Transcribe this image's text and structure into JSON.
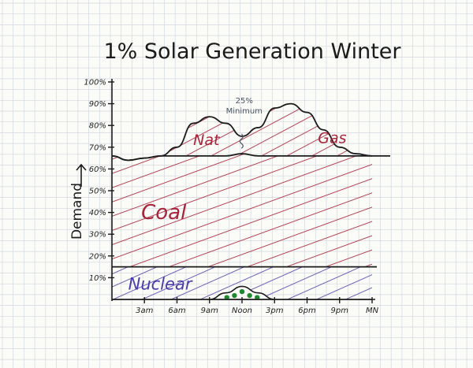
{
  "chart_data": {
    "type": "area",
    "title": "1% Solar Generation Winter",
    "ylabel": "Demand",
    "y_ticks": [
      "10%",
      "20%",
      "30%",
      "40%",
      "50%",
      "60%",
      "70%",
      "80%",
      "90%",
      "100%"
    ],
    "y_tick_values": [
      10,
      20,
      30,
      40,
      50,
      60,
      70,
      80,
      90,
      100
    ],
    "x_ticks": [
      "3am",
      "6am",
      "9am",
      "Noon",
      "3pm",
      "6pm",
      "9pm",
      "MN"
    ],
    "x_tick_values": [
      3,
      6,
      9,
      12,
      15,
      18,
      21,
      24
    ],
    "xlim": [
      0,
      24
    ],
    "ylim": [
      0,
      100
    ],
    "x": [
      0,
      1.5,
      3,
      4.5,
      6,
      7.5,
      9,
      10.5,
      12,
      13.5,
      15,
      16.5,
      18,
      19.5,
      21,
      22.5,
      24
    ],
    "series": [
      {
        "name": "Nuclear",
        "color": "#4a3ca8",
        "values": [
          15,
          15,
          15,
          15,
          15,
          15,
          15,
          15,
          15,
          15,
          15,
          15,
          15,
          15,
          15,
          15,
          15
        ]
      },
      {
        "name": "Coal",
        "color": "#a8243a",
        "values": [
          66,
          64,
          65,
          66,
          66,
          66,
          66,
          66,
          67,
          66,
          66,
          66,
          66,
          66,
          66,
          66,
          66
        ]
      },
      {
        "name": "Nat Gas",
        "color": "#a8243a",
        "values": [
          66,
          64,
          65,
          66,
          70,
          81,
          84,
          81,
          75,
          79,
          88,
          90,
          86,
          78,
          70,
          67,
          66
        ]
      },
      {
        "name": "Solar",
        "color": "#1e8a2e",
        "values": [
          0,
          0,
          0,
          0,
          0,
          0,
          0,
          3,
          6,
          3,
          0,
          0,
          0,
          0,
          0,
          0,
          0
        ]
      }
    ],
    "annotations": [
      {
        "text": "25% Minimum",
        "x": 12,
        "y": 75
      },
      {
        "text": "Nuclear",
        "series": "Nuclear"
      },
      {
        "text": "Coal",
        "series": "Coal"
      },
      {
        "text": "Nat",
        "series": "Nat Gas"
      },
      {
        "text": "Gas",
        "series": "Nat Gas"
      }
    ],
    "grid": true,
    "legend": "none",
    "colors": {
      "ink": "#1b1b1b",
      "grid": "#d3d8de",
      "paper": "#fbfbf8"
    }
  }
}
